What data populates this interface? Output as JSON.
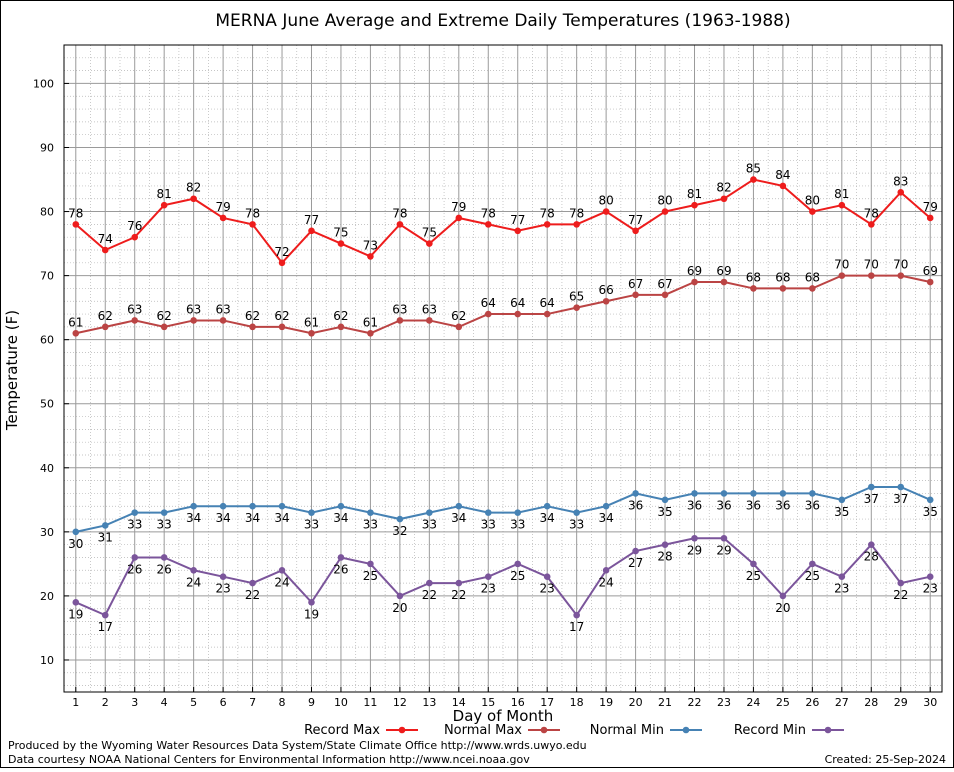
{
  "chart_data": {
    "type": "line",
    "title": "MERNA June Average and Extreme Daily Temperatures (1963-1988)",
    "xlabel": "Day of Month",
    "ylabel": "Temperature (F)",
    "x": [
      1,
      2,
      3,
      4,
      5,
      6,
      7,
      8,
      9,
      10,
      11,
      12,
      13,
      14,
      15,
      16,
      17,
      18,
      19,
      20,
      21,
      22,
      23,
      24,
      25,
      26,
      27,
      28,
      29,
      30
    ],
    "xlim": [
      0.6,
      30.4
    ],
    "ylim": [
      5,
      106
    ],
    "yticks": [
      10,
      20,
      30,
      40,
      50,
      60,
      70,
      80,
      90,
      100
    ],
    "grid": true,
    "legend_position": "bottom",
    "series": [
      {
        "name": "Record Max",
        "color": "#ee1c1c",
        "label_position": "above",
        "values": [
          78,
          74,
          76,
          81,
          82,
          79,
          78,
          72,
          77,
          75,
          73,
          78,
          75,
          79,
          78,
          77,
          78,
          78,
          80,
          77,
          80,
          81,
          82,
          85,
          84,
          80,
          81,
          78,
          83,
          79
        ]
      },
      {
        "name": "Normal Max",
        "color": "#bb4444",
        "label_position": "above",
        "values": [
          61,
          62,
          63,
          62,
          63,
          63,
          62,
          62,
          61,
          62,
          61,
          63,
          63,
          62,
          64,
          64,
          64,
          65,
          66,
          67,
          67,
          69,
          69,
          68,
          68,
          68,
          70,
          70,
          70,
          69
        ]
      },
      {
        "name": "Normal Min",
        "color": "#4682b4",
        "label_position": "below",
        "values": [
          30,
          31,
          33,
          33,
          34,
          34,
          34,
          34,
          33,
          34,
          33,
          32,
          33,
          34,
          33,
          33,
          34,
          33,
          34,
          36,
          35,
          36,
          36,
          36,
          36,
          36,
          35,
          37,
          37,
          35
        ]
      },
      {
        "name": "Record Min",
        "color": "#7b559b",
        "label_position": "below",
        "values": [
          19,
          17,
          26,
          26,
          24,
          23,
          22,
          24,
          19,
          26,
          25,
          20,
          22,
          22,
          23,
          25,
          23,
          17,
          24,
          27,
          28,
          29,
          29,
          25,
          20,
          25,
          23,
          28,
          22,
          23
        ]
      }
    ]
  },
  "footer": {
    "produced_by": "Produced by the Wyoming Water Resources Data System/State Climate Office http://www.wrds.uwyo.edu",
    "data_courtesy": "Data courtesy NOAA National Centers for Environmental Information http://www.ncei.noaa.gov",
    "created": "Created: 25-Sep-2024"
  }
}
